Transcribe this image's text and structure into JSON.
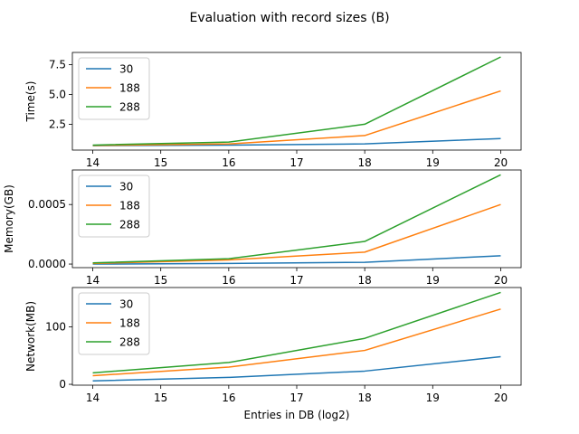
{
  "figure_title": "Evaluation with record sizes (B)",
  "chart_data": [
    {
      "type": "line",
      "title": "",
      "xlabel": "",
      "ylabel": "Time(s)",
      "x": [
        14,
        16,
        18,
        20
      ],
      "xlim": [
        13.7,
        20.3
      ],
      "ylim": [
        0.33,
        8.53
      ],
      "xticks": [
        14,
        15,
        16,
        17,
        18,
        19,
        20
      ],
      "yticks": [
        2.5,
        5.0,
        7.5
      ],
      "ytick_labels": [
        "2.5",
        "5.0",
        "7.5"
      ],
      "grid": false,
      "legend": "top-left",
      "series": [
        {
          "name": "30",
          "color": "#1f77b4",
          "values": [
            0.7,
            0.75,
            0.85,
            1.3
          ]
        },
        {
          "name": "188",
          "color": "#ff7f0e",
          "values": [
            0.72,
            0.85,
            1.55,
            5.3
          ]
        },
        {
          "name": "288",
          "color": "#2ca02c",
          "values": [
            0.75,
            1.0,
            2.5,
            8.15
          ]
        }
      ]
    },
    {
      "type": "line",
      "title": "",
      "xlabel": "",
      "ylabel": "Memory(GB)",
      "x": [
        14,
        16,
        18,
        20
      ],
      "xlim": [
        13.7,
        20.3
      ],
      "ylim": [
        -3e-05,
        0.00079
      ],
      "xticks": [
        14,
        15,
        16,
        17,
        18,
        19,
        20
      ],
      "yticks": [
        0.0,
        0.0005
      ],
      "ytick_labels": [
        "0.0000",
        "0.0005"
      ],
      "grid": false,
      "legend": "top-left",
      "series": [
        {
          "name": "30",
          "color": "#1f77b4",
          "values": [
            0.0,
            5e-06,
            1.5e-05,
            7e-05
          ]
        },
        {
          "name": "188",
          "color": "#ff7f0e",
          "values": [
            5e-06,
            3.5e-05,
            0.0001,
            0.0005
          ]
        },
        {
          "name": "288",
          "color": "#2ca02c",
          "values": [
            1e-05,
            4.5e-05,
            0.00019,
            0.00075
          ]
        }
      ]
    },
    {
      "type": "line",
      "title": "",
      "xlabel": "Entries in DB (log2)",
      "ylabel": "Network(MB)",
      "x": [
        14,
        16,
        18,
        20
      ],
      "xlim": [
        13.7,
        20.3
      ],
      "ylim": [
        -1.5,
        168.5
      ],
      "xticks": [
        14,
        15,
        16,
        17,
        18,
        19,
        20
      ],
      "yticks": [
        0,
        100
      ],
      "ytick_labels": [
        "0",
        "100"
      ],
      "grid": false,
      "legend": "top-left",
      "series": [
        {
          "name": "30",
          "color": "#1f77b4",
          "values": [
            6,
            12,
            23,
            48
          ]
        },
        {
          "name": "188",
          "color": "#ff7f0e",
          "values": [
            15,
            30,
            59,
            131
          ]
        },
        {
          "name": "288",
          "color": "#2ca02c",
          "values": [
            20,
            38,
            80,
            160
          ]
        }
      ]
    }
  ]
}
